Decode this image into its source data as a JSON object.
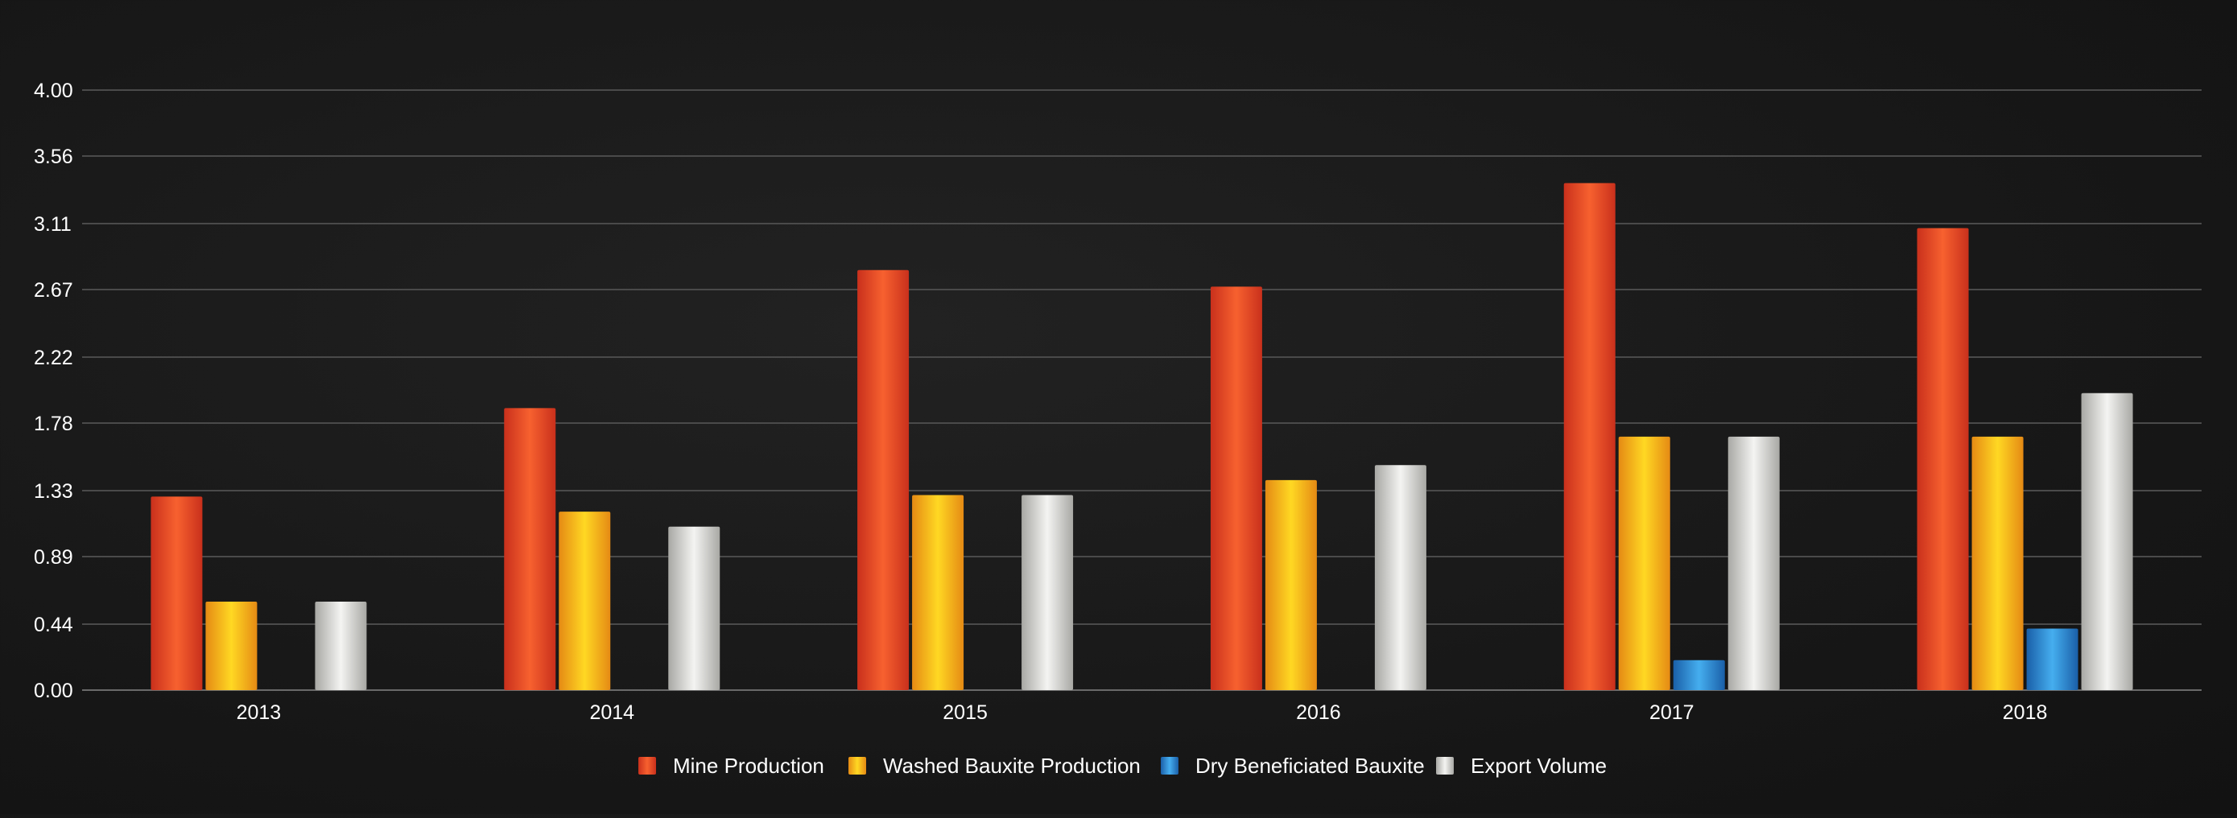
{
  "chart_data": {
    "type": "bar",
    "title": "",
    "xlabel": "",
    "ylabel": "",
    "categories": [
      "2013",
      "2014",
      "2015",
      "2016",
      "2017",
      "2018"
    ],
    "y_ticks": [
      "0.00",
      "0.44",
      "0.89",
      "1.33",
      "1.78",
      "2.22",
      "2.67",
      "3.11",
      "3.56",
      "4.00"
    ],
    "ylim": [
      0,
      4.0
    ],
    "grid": true,
    "legend_position": "bottom-center",
    "series": [
      {
        "name": "Mine Production",
        "values": [
          1.29,
          1.88,
          2.8,
          2.69,
          3.38,
          3.08
        ],
        "color": "#f0462a",
        "color_light": "#f7612f",
        "color_dark": "#c9301c"
      },
      {
        "name": "Washed Bauxite Production",
        "values": [
          0.59,
          1.19,
          1.3,
          1.4,
          1.69,
          1.69
        ],
        "color": "#f5b21c",
        "color_light": "#ffd823",
        "color_dark": "#e58a14"
      },
      {
        "name": "Dry Beneficiated Bauxite",
        "values": [
          0,
          0,
          0,
          0,
          0.2,
          0.41
        ],
        "color": "#2a8fd8",
        "color_light": "#45aeef",
        "color_dark": "#1a5fa8"
      },
      {
        "name": "Export Volume",
        "values": [
          0.59,
          1.09,
          1.3,
          1.5,
          1.69,
          1.98
        ],
        "color": "#d8d8d6",
        "color_light": "#f4f4f2",
        "color_dark": "#a8a8a4"
      }
    ]
  }
}
